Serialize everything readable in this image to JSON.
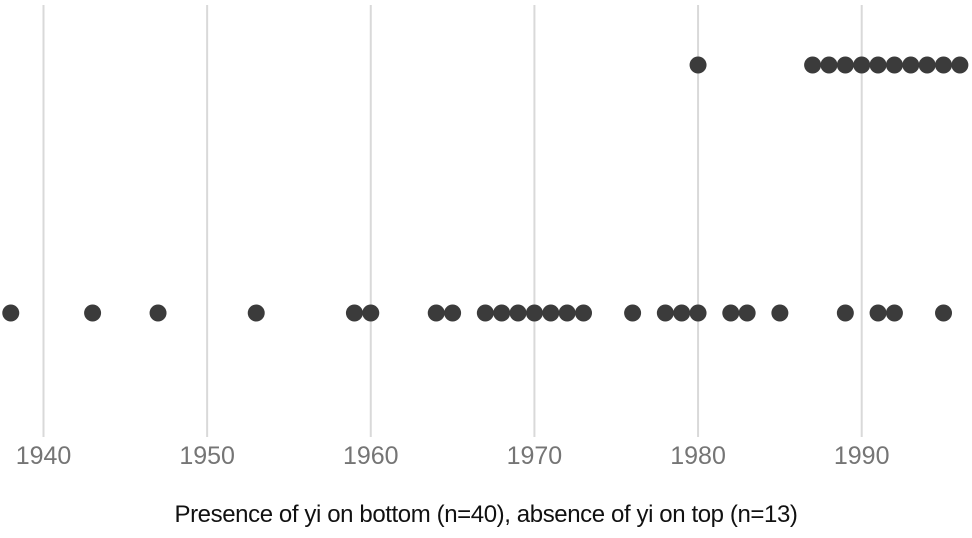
{
  "chart_data": {
    "type": "scatter",
    "variant": "dot-strip-plot",
    "caption": "Presence of yi on bottom (n=40), absence of yi on top (n=13)",
    "x_ticks": [
      1940,
      1950,
      1960,
      1970,
      1980,
      1990
    ],
    "xlim": [
      1937,
      1997
    ],
    "grid": true,
    "legend": "none",
    "rows": [
      "top",
      "bottom"
    ],
    "series": [
      {
        "name": "absence of yi",
        "row": "top",
        "n": 13,
        "years_visible": [
          1980,
          1987,
          1988,
          1989,
          1990,
          1991,
          1992,
          1993,
          1994,
          1995,
          1996
        ]
      },
      {
        "name": "presence of yi",
        "row": "bottom",
        "n": 40,
        "years_visible": [
          1938,
          1943,
          1947,
          1953,
          1959,
          1960,
          1964,
          1965,
          1967,
          1968,
          1969,
          1970,
          1971,
          1972,
          1973,
          1976,
          1978,
          1979,
          1980,
          1982,
          1983,
          1985,
          1989,
          1991,
          1992,
          1995
        ]
      }
    ],
    "colors": {
      "dot": "#3b3b3b",
      "gridline": "#d9d9d9",
      "tick_label": "#757575",
      "caption": "#111111",
      "background": "#ffffff"
    }
  }
}
